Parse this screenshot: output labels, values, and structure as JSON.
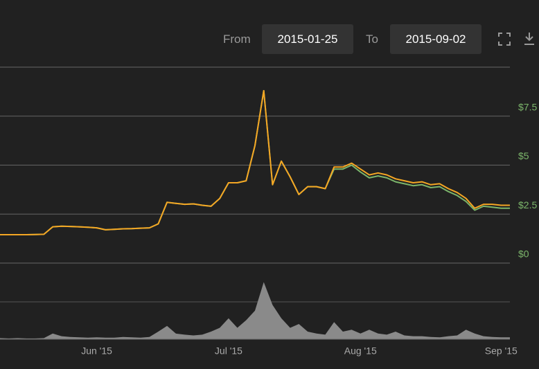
{
  "controls": {
    "from_label": "From",
    "from_date": "2015-01-25",
    "to_label": "To",
    "to_date": "2015-09-02"
  },
  "chart_data": [
    {
      "type": "line",
      "categories": [
        null,
        null,
        null,
        null,
        null,
        null,
        null,
        null,
        null,
        null,
        null,
        "Jun '15",
        null,
        null,
        null,
        null,
        null,
        null,
        null,
        null,
        null,
        null,
        null,
        null,
        null,
        null,
        "Jul '15",
        null,
        null,
        null,
        null,
        null,
        null,
        null,
        null,
        null,
        null,
        null,
        null,
        null,
        null,
        "Aug '15",
        null,
        null,
        null,
        null,
        null,
        null,
        null,
        null,
        null,
        null,
        null,
        null,
        null,
        null,
        null,
        "Sep '15",
        null
      ],
      "series": [
        {
          "color": "#7cb66b",
          "values": [
            1.45,
            1.45,
            1.45,
            1.45,
            1.46,
            1.47,
            1.85,
            1.88,
            1.87,
            1.85,
            1.83,
            1.8,
            1.7,
            1.72,
            1.75,
            1.76,
            1.78,
            1.8,
            2.0,
            3.1,
            3.05,
            3.0,
            3.02,
            2.95,
            2.9,
            3.3,
            4.1,
            4.1,
            4.2,
            6.0,
            8.8,
            4.0,
            5.2,
            4.4,
            3.5,
            3.9,
            3.9,
            3.8,
            4.8,
            4.8,
            5.0,
            4.65,
            4.35,
            4.45,
            4.35,
            4.15,
            4.05,
            3.95,
            4.0,
            3.85,
            3.9,
            3.65,
            3.45,
            3.15,
            2.7,
            2.9,
            2.85,
            2.8,
            2.8
          ]
        },
        {
          "color": "#f5a623",
          "values": [
            1.45,
            1.45,
            1.45,
            1.45,
            1.46,
            1.47,
            1.85,
            1.88,
            1.87,
            1.85,
            1.83,
            1.8,
            1.7,
            1.72,
            1.75,
            1.76,
            1.78,
            1.8,
            2.0,
            3.1,
            3.05,
            3.0,
            3.02,
            2.95,
            2.9,
            3.3,
            4.1,
            4.1,
            4.2,
            6.0,
            8.8,
            4.0,
            5.2,
            4.4,
            3.5,
            3.9,
            3.9,
            3.8,
            4.9,
            4.9,
            5.1,
            4.8,
            4.5,
            4.6,
            4.5,
            4.3,
            4.2,
            4.1,
            4.15,
            4.0,
            4.05,
            3.8,
            3.6,
            3.3,
            2.8,
            3.0,
            3.0,
            2.95,
            2.95
          ]
        }
      ],
      "ylim": [
        0,
        10
      ],
      "yticks": [
        {
          "value": 0,
          "label": "$0"
        },
        {
          "value": 2.5,
          "label": "$2.5"
        },
        {
          "value": 5,
          "label": "$5"
        },
        {
          "value": 7.5,
          "label": "$7.5"
        }
      ],
      "grid": true
    },
    {
      "type": "area",
      "color": "#8a8a8a",
      "values": [
        0.03,
        0.02,
        0.03,
        0.02,
        0.02,
        0.03,
        0.15,
        0.08,
        0.06,
        0.05,
        0.04,
        0.05,
        0.04,
        0.04,
        0.06,
        0.05,
        0.04,
        0.06,
        0.2,
        0.35,
        0.15,
        0.12,
        0.1,
        0.12,
        0.2,
        0.3,
        0.55,
        0.3,
        0.5,
        0.75,
        1.5,
        0.9,
        0.55,
        0.3,
        0.4,
        0.2,
        0.15,
        0.12,
        0.45,
        0.2,
        0.25,
        0.15,
        0.25,
        0.15,
        0.12,
        0.2,
        0.1,
        0.08,
        0.08,
        0.06,
        0.05,
        0.08,
        0.1,
        0.25,
        0.15,
        0.08,
        0.06,
        0.05,
        0.05
      ],
      "ylim": [
        0,
        2
      ]
    }
  ]
}
